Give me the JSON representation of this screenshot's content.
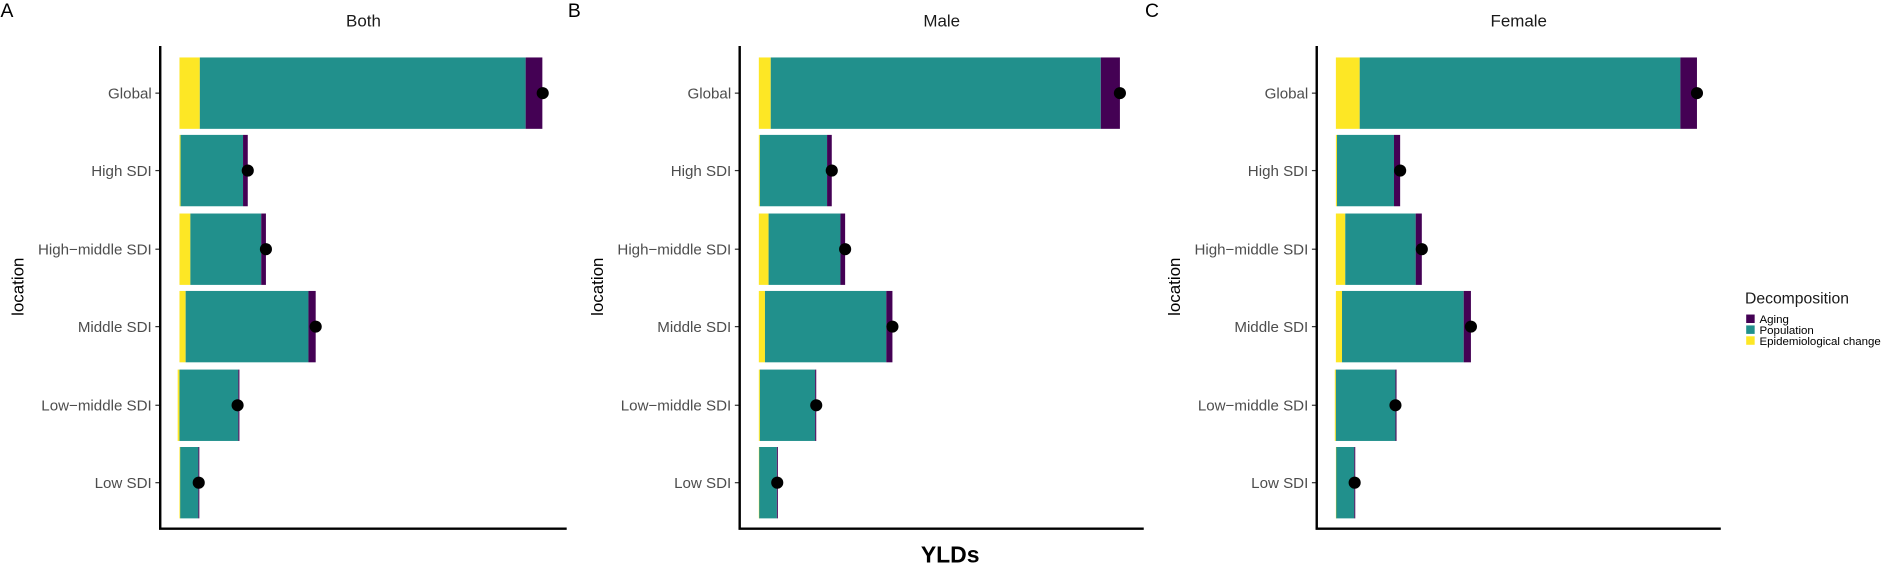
{
  "chart_data": [
    {
      "type": "bar",
      "orientation": "horizontal-stacked",
      "panel_tag": "A",
      "title": "Both",
      "ylabel": "location",
      "categories": [
        "Global",
        "High SDI",
        "High−middle SDI",
        "Middle SDI",
        "Low−middle SDI",
        "Low SDI"
      ],
      "series": [
        {
          "name": "Epidemiological change",
          "values": [
            5.6,
            0.3,
            3.0,
            1.7,
            -0.5,
            0.2
          ]
        },
        {
          "name": "Population",
          "values": [
            89.7,
            17.2,
            19.5,
            33.8,
            16.2,
            5.0
          ]
        },
        {
          "name": "Aging",
          "values": [
            4.6,
            1.3,
            1.3,
            2.0,
            0.3,
            0.1
          ]
        }
      ],
      "totals": [
        100,
        18.8,
        23.8,
        37.5,
        16.0,
        5.3
      ],
      "xlim": [
        -5.3,
        106.6
      ]
    },
    {
      "type": "bar",
      "orientation": "horizontal-stacked",
      "panel_tag": "B",
      "title": "Male",
      "ylabel": "location",
      "categories": [
        "Global",
        "High SDI",
        "High−middle SDI",
        "Middle SDI",
        "Low−middle SDI",
        "Low SDI"
      ],
      "series": [
        {
          "name": "Epidemiological change",
          "values": [
            3.3,
            0.3,
            2.7,
            1.7,
            0.3,
            0.1
          ]
        },
        {
          "name": "Population",
          "values": [
            91.4,
            18.6,
            19.9,
            33.6,
            15.3,
            4.9
          ]
        },
        {
          "name": "Aging",
          "values": [
            5.3,
            1.3,
            1.3,
            1.7,
            0.3,
            0.1
          ]
        }
      ],
      "totals": [
        100,
        20.2,
        23.9,
        37.0,
        15.9,
        5.1
      ],
      "xlim": [
        -5.3,
        106.6
      ]
    },
    {
      "type": "bar",
      "orientation": "horizontal-stacked",
      "panel_tag": "C",
      "title": "Female",
      "ylabel": "location",
      "categories": [
        "Global",
        "High SDI",
        "High−middle SDI",
        "Middle SDI",
        "Low−middle SDI",
        "Low SDI"
      ],
      "series": [
        {
          "name": "Epidemiological change",
          "values": [
            6.6,
            0.3,
            2.6,
            1.7,
            -0.3,
            0.1
          ]
        },
        {
          "name": "Population",
          "values": [
            88.8,
            15.8,
            19.5,
            33.7,
            16.5,
            5.0
          ]
        },
        {
          "name": "Aging",
          "values": [
            4.6,
            1.7,
            1.7,
            2.0,
            0.3,
            0.1
          ]
        }
      ],
      "totals": [
        100,
        17.8,
        23.8,
        37.4,
        16.5,
        5.2
      ],
      "xlim": [
        -5.3,
        106.6
      ]
    }
  ],
  "xlabel": "YLDs",
  "legend": {
    "title": "Decomposition",
    "placement": "right",
    "items": [
      {
        "label": "Aging",
        "color": "#440154"
      },
      {
        "label": "Population",
        "color": "#21908C"
      },
      {
        "label": "Epidemiological change",
        "color": "#FDE725"
      }
    ]
  },
  "colors": {
    "Aging": "#440154",
    "Population": "#21908C",
    "Epidemiological change": "#FDE725",
    "total_point": "#000000"
  }
}
